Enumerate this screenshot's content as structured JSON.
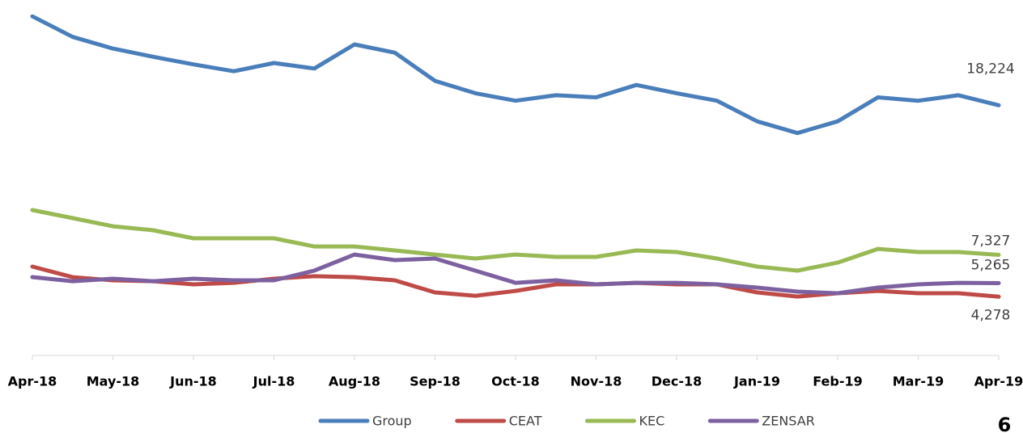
{
  "chart_data": {
    "type": "line",
    "xlim": [
      0,
      12
    ],
    "xticks": [
      {
        "value": 0,
        "label": "Apr-18"
      },
      {
        "value": 1,
        "label": "May-18"
      },
      {
        "value": 2,
        "label": "Jun-18"
      },
      {
        "value": 3,
        "label": "Jul-18"
      },
      {
        "value": 4,
        "label": "Aug-18"
      },
      {
        "value": 5,
        "label": "Sep-18"
      },
      {
        "value": 6,
        "label": "Oct-18"
      },
      {
        "value": 7,
        "label": "Nov-18"
      },
      {
        "value": 8,
        "label": "Dec-18"
      },
      {
        "value": 9,
        "label": "Jan-19"
      },
      {
        "value": 10,
        "label": "Feb-19"
      },
      {
        "value": 11,
        "label": "Mar-19"
      },
      {
        "value": 12,
        "label": "Apr-19"
      }
    ],
    "ylim": [
      0,
      25300
    ],
    "x": [
      0,
      0.5,
      1,
      1.5,
      2,
      2.5,
      3,
      3.5,
      4,
      4.5,
      5,
      5.5,
      6,
      6.5,
      7,
      7.5,
      8,
      8.5,
      9,
      9.5,
      10,
      10.5,
      11,
      11.5,
      12
    ],
    "legend": "bottom",
    "series": [
      {
        "name": "Group",
        "color": "#4a7ebb",
        "values": [
          24700,
          23200,
          22350,
          21750,
          21200,
          20700,
          21300,
          20900,
          22650,
          22050,
          20000,
          19100,
          18550,
          18950,
          18800,
          19700,
          19100,
          18550,
          17050,
          16200,
          17050,
          18800,
          18550,
          18950,
          18224
        ],
        "value_labels": [
          null,
          null,
          null,
          null,
          null,
          null,
          null,
          null,
          null,
          null,
          null,
          null,
          null,
          null,
          null,
          null,
          null,
          null,
          null,
          null,
          null,
          null,
          null,
          null,
          "18,224"
        ]
      },
      {
        "name": "CEAT",
        "color": "#be4b48",
        "values": [
          6470,
          5700,
          5470,
          5410,
          5180,
          5290,
          5590,
          5770,
          5700,
          5470,
          4590,
          4350,
          4700,
          5180,
          5180,
          5290,
          5180,
          5180,
          4590,
          4290,
          4530,
          4700,
          4530,
          4530,
          4278
        ],
        "value_labels": [
          null,
          null,
          null,
          null,
          null,
          null,
          null,
          null,
          null,
          null,
          null,
          null,
          null,
          null,
          null,
          null,
          null,
          null,
          null,
          null,
          null,
          null,
          null,
          null,
          "4,278"
        ]
      },
      {
        "name": "KEC",
        "color": "#98b954",
        "values": [
          10590,
          10000,
          9410,
          9120,
          8530,
          8530,
          8530,
          7940,
          7940,
          7650,
          7350,
          7060,
          7350,
          7180,
          7180,
          7650,
          7530,
          7060,
          6470,
          6180,
          6760,
          7760,
          7530,
          7530,
          7327
        ],
        "value_labels": [
          null,
          null,
          null,
          null,
          null,
          null,
          null,
          null,
          null,
          null,
          null,
          null,
          null,
          null,
          null,
          null,
          null,
          null,
          null,
          null,
          null,
          null,
          null,
          null,
          "7,327"
        ]
      },
      {
        "name": "ZENSAR",
        "color": "#7d60a0",
        "values": [
          5710,
          5410,
          5590,
          5410,
          5590,
          5470,
          5470,
          6180,
          7350,
          6940,
          7060,
          6180,
          5290,
          5470,
          5180,
          5290,
          5290,
          5180,
          4940,
          4650,
          4530,
          4940,
          5180,
          5290,
          5265
        ],
        "value_labels": [
          null,
          null,
          null,
          null,
          null,
          null,
          null,
          null,
          null,
          null,
          null,
          null,
          null,
          null,
          null,
          null,
          null,
          null,
          null,
          null,
          null,
          null,
          null,
          null,
          "5,265"
        ]
      }
    ]
  },
  "page_number": "6"
}
